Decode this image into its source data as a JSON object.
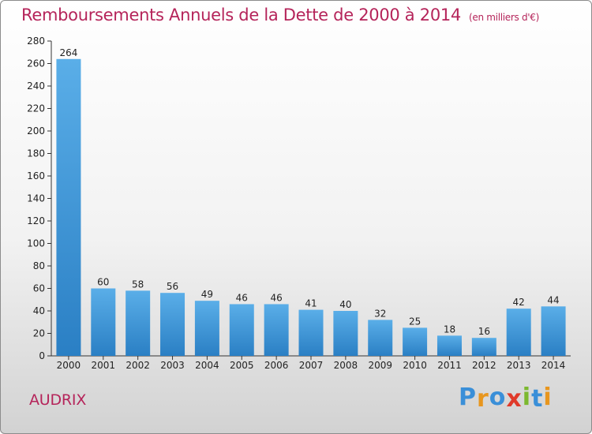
{
  "header": {
    "title": "Remboursements Annuels de la Dette de 2000 à 2014",
    "subtitle": "(en milliers d'€)"
  },
  "footer": {
    "place": "AUDRIX",
    "logo_letters": [
      "P",
      "r",
      "o",
      "x",
      "i",
      "t",
      "i"
    ]
  },
  "colors": {
    "title": "#b5245a",
    "bar_top": "#5aaee8",
    "bar_bottom": "#2a7fc4",
    "logo": [
      "#3a8fd8",
      "#e8961e",
      "#3a8fd8",
      "#e03a2a",
      "#7cb82f",
      "#3a8fd8",
      "#e8961e"
    ]
  },
  "chart_data": {
    "type": "bar",
    "categories": [
      "2000",
      "2001",
      "2002",
      "2003",
      "2004",
      "2005",
      "2006",
      "2007",
      "2008",
      "2009",
      "2010",
      "2011",
      "2012",
      "2013",
      "2014"
    ],
    "values": [
      264,
      60,
      58,
      56,
      49,
      46,
      46,
      41,
      40,
      32,
      25,
      18,
      16,
      42,
      44
    ],
    "ylim": [
      0,
      280
    ],
    "yticks": [
      0,
      20,
      40,
      60,
      80,
      100,
      120,
      140,
      160,
      180,
      200,
      220,
      240,
      260,
      280
    ],
    "grid": false,
    "legend": "none"
  }
}
